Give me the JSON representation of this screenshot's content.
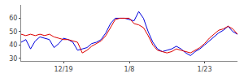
{
  "chart_data": {
    "type": "line",
    "categories": [
      null,
      null,
      null,
      null,
      null,
      null,
      null,
      null,
      null,
      "12/19",
      null,
      null,
      null,
      null,
      null,
      null,
      null,
      null,
      null,
      null,
      null,
      null,
      null,
      "1/8",
      null,
      null,
      null,
      null,
      null,
      null,
      null,
      null,
      null,
      null,
      null,
      null,
      null,
      null,
      null,
      "1/23",
      null,
      null,
      null,
      null,
      null,
      null,
      null
    ],
    "series": [
      {
        "color": "#0000dd",
        "values": [
          42,
          44,
          37,
          43,
          46,
          45,
          44,
          38,
          41,
          45,
          44,
          42,
          36,
          37,
          38,
          41,
          42,
          44,
          49,
          56,
          60,
          60,
          60,
          59,
          58,
          65,
          60,
          50,
          42,
          37,
          35,
          36,
          37,
          39,
          37,
          34,
          32,
          35,
          37,
          40,
          43,
          46,
          49,
          51,
          54,
          50,
          48
        ]
      },
      {
        "color": "#dd0000",
        "values": [
          48,
          47,
          48,
          47,
          48,
          47,
          48,
          46,
          45,
          44,
          44,
          43,
          42,
          34,
          36,
          39,
          41,
          43,
          47,
          53,
          59,
          60,
          60,
          60,
          56,
          55,
          53,
          47,
          40,
          36,
          35,
          34,
          35,
          37,
          36,
          35,
          34,
          36,
          38,
          41,
          45,
          48,
          51,
          52,
          54,
          52,
          48
        ]
      }
    ],
    "ylim": [
      28,
      70
    ],
    "yticks": [
      30,
      40,
      50,
      60
    ],
    "grid": false
  }
}
